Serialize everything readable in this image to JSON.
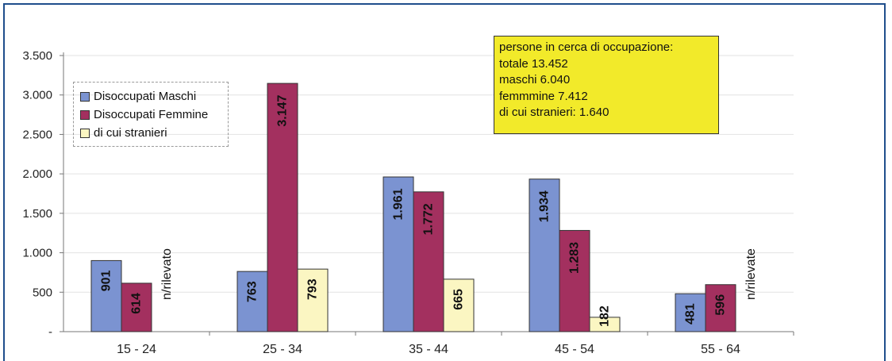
{
  "chart_data": {
    "type": "bar",
    "categories": [
      "15 - 24",
      "25 - 34",
      "35 - 44",
      "45 - 54",
      "55 - 64"
    ],
    "series": [
      {
        "name": "Disoccupati Maschi",
        "color": "#7b93d1",
        "values": [
          901,
          763,
          1961,
          1934,
          481
        ],
        "labels": [
          "901",
          "763",
          "1.961",
          "1.934",
          "481"
        ]
      },
      {
        "name": "Disoccupati Femmine",
        "color": "#a3305f",
        "values": [
          614,
          3147,
          1772,
          1283,
          596
        ],
        "labels": [
          "614",
          "3.147",
          "1.772",
          "1.283",
          "596"
        ]
      },
      {
        "name": "di cui stranieri",
        "color": "#fbf6c2",
        "values": [
          null,
          793,
          665,
          182,
          null
        ],
        "labels": [
          "n/rilevato",
          "793",
          "665",
          "182",
          "n/rilevate"
        ]
      }
    ],
    "ylim": [
      0,
      3500
    ],
    "yticks": [
      {
        "value": 0,
        "label": "-"
      },
      {
        "value": 500,
        "label": "500"
      },
      {
        "value": 1000,
        "label": "1.000"
      },
      {
        "value": 1500,
        "label": "1.500"
      },
      {
        "value": 2000,
        "label": "2.000"
      },
      {
        "value": 2500,
        "label": "2.500"
      },
      {
        "value": 3000,
        "label": "3.000"
      },
      {
        "value": 3500,
        "label": "3.500"
      }
    ],
    "grid": true,
    "legend_position": "top-left",
    "annotation": {
      "lines": [
        "persone in cerca di occupazione:",
        "totale 13.452",
        "maschi 6.040",
        "femmmine 7.412",
        "di cui stranieri: 1.640"
      ],
      "background": "#f2ea2a"
    }
  }
}
